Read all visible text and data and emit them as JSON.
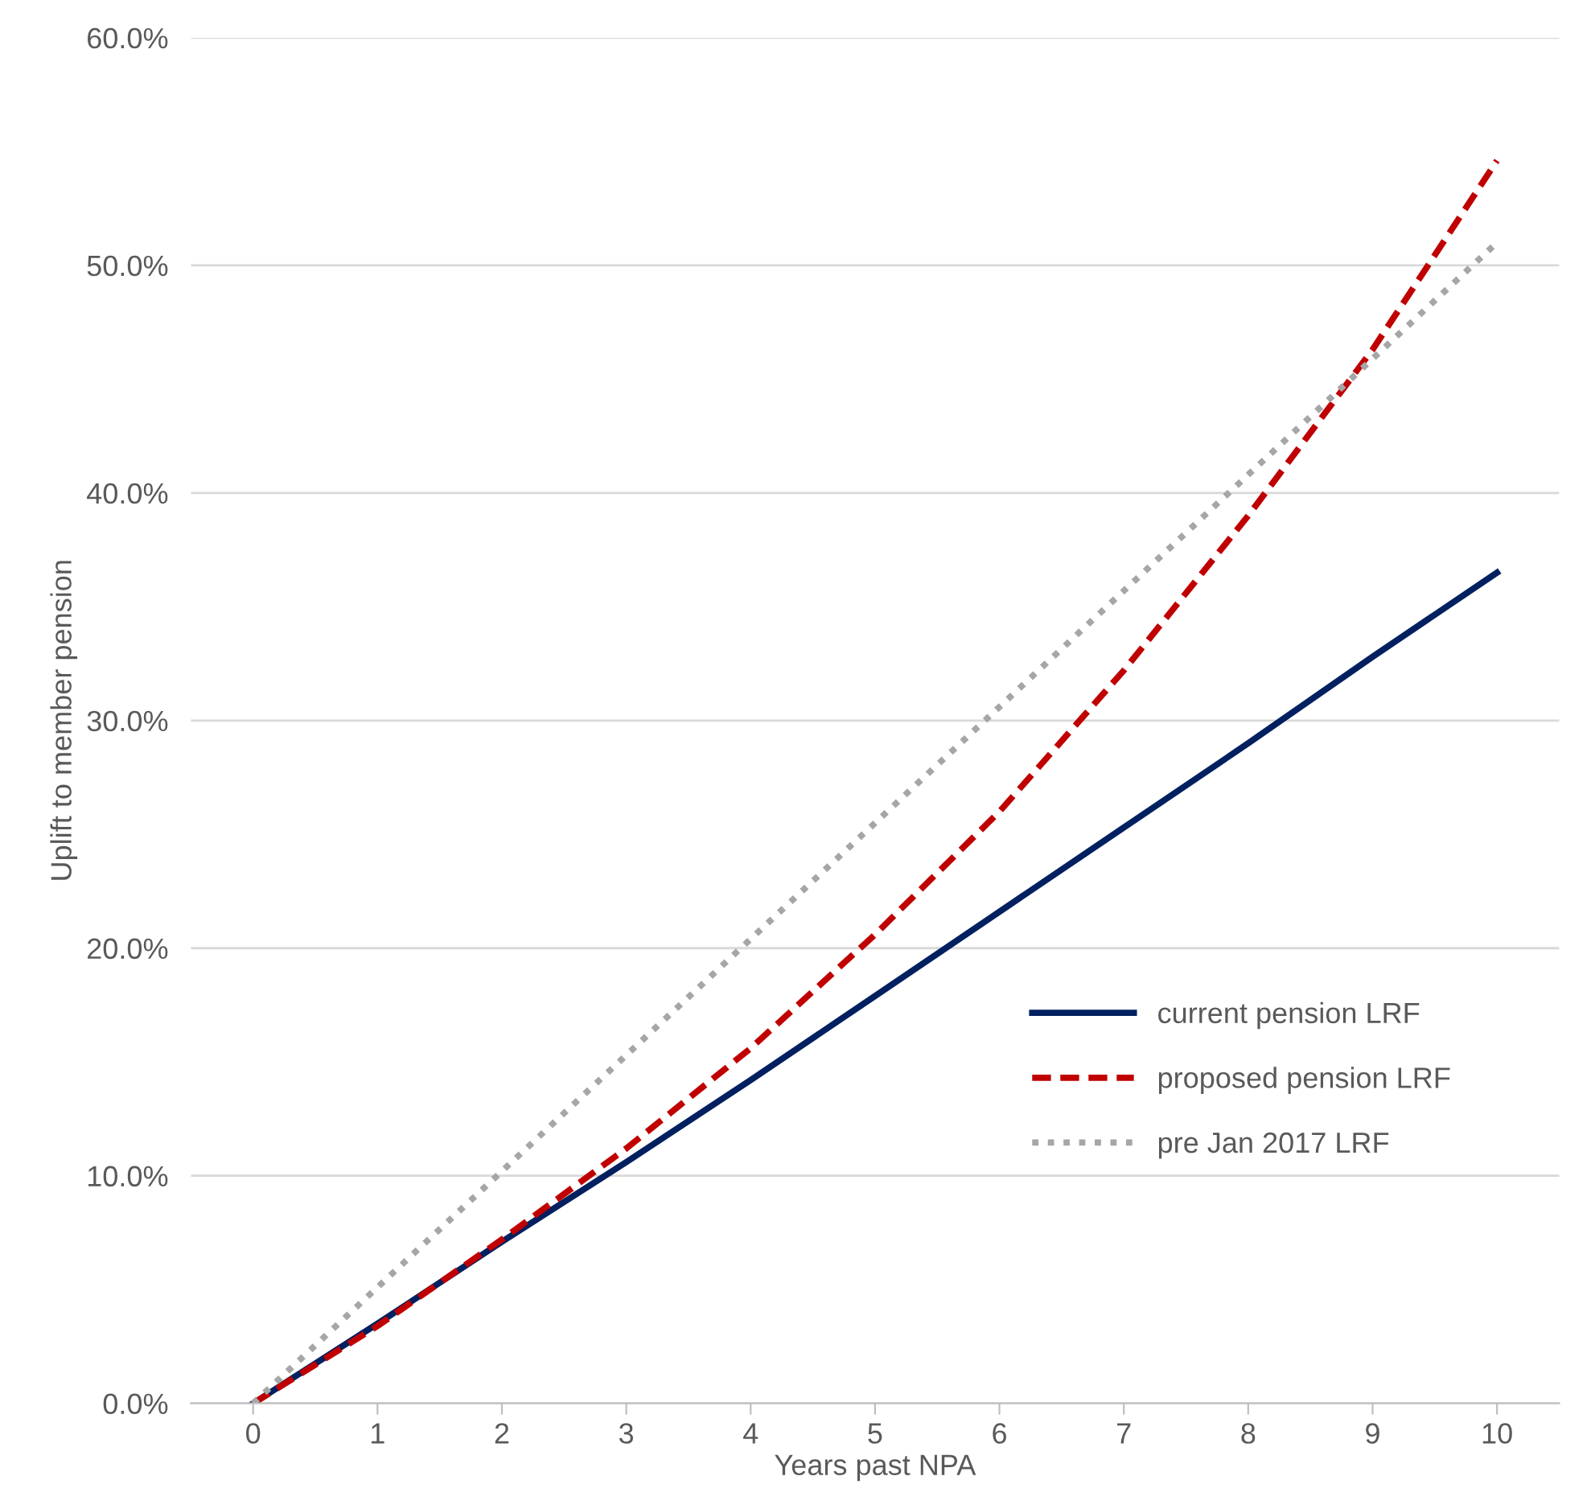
{
  "chart_data": {
    "type": "line",
    "xlabel": "Years past NPA",
    "ylabel": "Uplift to member pension",
    "x": [
      0,
      1,
      2,
      3,
      4,
      5,
      6,
      7,
      8,
      9,
      10
    ],
    "series": [
      {
        "name": "current pension LRF",
        "color": "#002060",
        "line_style": "solid",
        "values": [
          0,
          3.5,
          7.1,
          10.6,
          14.2,
          17.9,
          21.6,
          25.3,
          29.0,
          32.8,
          36.5
        ]
      },
      {
        "name": "proposed pension LRF",
        "color": "#c00000",
        "line_style": "dashed",
        "values": [
          0,
          3.4,
          7.2,
          11.2,
          15.6,
          20.6,
          26.0,
          32.2,
          39.0,
          46.3,
          54.6
        ]
      },
      {
        "name": "pre Jan 2017 LRF",
        "color": "#a6a6a6",
        "line_style": "dotted",
        "values": [
          0,
          5.1,
          10.2,
          15.3,
          20.4,
          25.5,
          30.6,
          35.7,
          40.8,
          45.9,
          51.0
        ]
      }
    ],
    "xlim": [
      -0.5,
      10.5
    ],
    "xticks": [
      0,
      1,
      2,
      3,
      4,
      5,
      6,
      7,
      8,
      9,
      10
    ],
    "ylim": [
      0,
      60
    ],
    "yticks": [
      {
        "value": 0,
        "label": "0.0%"
      },
      {
        "value": 10,
        "label": "10.0%"
      },
      {
        "value": 20,
        "label": "20.0%"
      },
      {
        "value": 30,
        "label": "30.0%"
      },
      {
        "value": 40,
        "label": "40.0%"
      },
      {
        "value": 50,
        "label": "50.0%"
      },
      {
        "value": 60,
        "label": "60.0%"
      }
    ],
    "grid": "y",
    "legend": "bottom right",
    "marker": "none"
  }
}
